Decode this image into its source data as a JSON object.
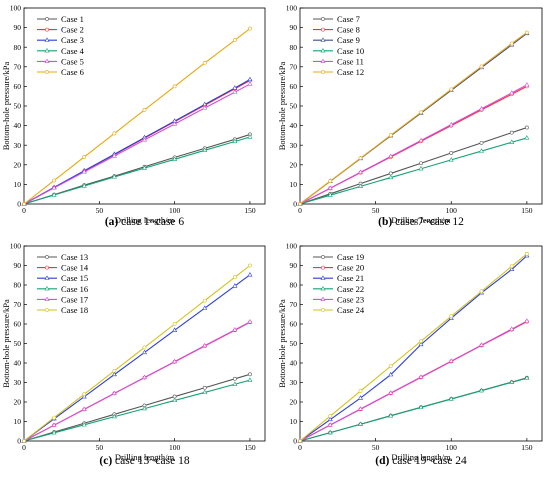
{
  "panels": [
    {
      "caption_letter": "(a)",
      "caption_text": " case 1~case 6",
      "chart_data": {
        "type": "line",
        "xlabel": "Drilling length/m",
        "ylabel": "Bottom-hole pressure/kPa",
        "xlim": [
          0,
          160
        ],
        "ylim": [
          0,
          100
        ],
        "xticks": [
          0,
          50,
          100,
          150
        ],
        "yticks": [
          0,
          10,
          20,
          30,
          40,
          50,
          60,
          70,
          80,
          90,
          100
        ],
        "grid": false,
        "legend": "top-left",
        "series": [
          {
            "name": "Case 1",
            "color": "#555555",
            "marker": "circle",
            "x": [
              0,
              20,
              40,
              60,
              80,
              100,
              120,
              140,
              150
            ],
            "y": [
              0,
              4.8,
              9.6,
              14.2,
              19.0,
              23.8,
              28.4,
              33.0,
              35.5
            ]
          },
          {
            "name": "Case 2",
            "color": "#ff3030",
            "marker": "circle",
            "x": [
              0,
              20,
              40,
              60,
              80,
              100,
              120,
              140,
              150
            ],
            "y": [
              0,
              8.4,
              16.8,
              25.2,
              33.6,
              42.0,
              50.4,
              58.8,
              63.0
            ]
          },
          {
            "name": "Case 3",
            "color": "#2a3fdc",
            "marker": "triangle",
            "x": [
              0,
              20,
              40,
              60,
              80,
              100,
              120,
              140,
              150
            ],
            "y": [
              0,
              8.5,
              17.0,
              25.4,
              33.9,
              42.3,
              50.8,
              59.2,
              63.5
            ]
          },
          {
            "name": "Case 4",
            "color": "#14a374",
            "marker": "triangle",
            "x": [
              0,
              20,
              40,
              60,
              80,
              100,
              120,
              140,
              150
            ],
            "y": [
              0,
              4.6,
              9.2,
              13.8,
              18.3,
              22.8,
              27.4,
              31.9,
              34.2
            ]
          },
          {
            "name": "Case 5",
            "color": "#d04ee0",
            "marker": "triangle",
            "x": [
              0,
              20,
              40,
              60,
              80,
              100,
              120,
              140,
              150
            ],
            "y": [
              0,
              8.2,
              16.4,
              24.5,
              32.7,
              40.8,
              49.0,
              57.1,
              61.2
            ]
          },
          {
            "name": "Case 6",
            "color": "#e8a80e",
            "marker": "circle",
            "x": [
              0,
              20,
              40,
              60,
              80,
              100,
              120,
              140,
              150
            ],
            "y": [
              0,
              12.0,
              24.0,
              36.0,
              48.0,
              60.0,
              72.0,
              83.6,
              89.5
            ]
          }
        ]
      }
    },
    {
      "caption_letter": "(b)",
      "caption_text": " case 7~case 12",
      "chart_data": {
        "type": "line",
        "xlabel": "Drilling length/m",
        "ylabel": "Bottom-hole pressure/kPa",
        "xlim": [
          0,
          160
        ],
        "ylim": [
          0,
          100
        ],
        "xticks": [
          0,
          50,
          100,
          150
        ],
        "yticks": [
          0,
          10,
          20,
          30,
          40,
          50,
          60,
          70,
          80,
          90,
          100
        ],
        "grid": false,
        "legend": "top-left",
        "series": [
          {
            "name": "Case 7",
            "color": "#555555",
            "marker": "circle",
            "x": [
              0,
              20,
              40,
              60,
              80,
              100,
              120,
              140,
              150
            ],
            "y": [
              0,
              5.2,
              10.4,
              15.6,
              20.8,
              26.0,
              31.2,
              36.4,
              39.0
            ]
          },
          {
            "name": "Case 8",
            "color": "#ff3030",
            "marker": "circle",
            "x": [
              0,
              20,
              40,
              60,
              80,
              100,
              120,
              140,
              150
            ],
            "y": [
              0,
              8.0,
              16.0,
              24.0,
              32.0,
              40.0,
              48.0,
              56.0,
              60.0
            ]
          },
          {
            "name": "Case 9",
            "color": "#3d4f8f",
            "marker": "triangle",
            "x": [
              0,
              20,
              40,
              60,
              80,
              100,
              120,
              140,
              150
            ],
            "y": [
              0,
              11.6,
              23.2,
              34.8,
              46.4,
              58.0,
              69.6,
              81.2,
              87.0
            ]
          },
          {
            "name": "Case 10",
            "color": "#14a374",
            "marker": "triangle",
            "x": [
              0,
              20,
              40,
              60,
              80,
              100,
              120,
              140,
              150
            ],
            "y": [
              0,
              4.5,
              9.0,
              13.5,
              18.0,
              22.5,
              27.0,
              31.5,
              33.7
            ]
          },
          {
            "name": "Case 11",
            "color": "#d04ee0",
            "marker": "triangle",
            "x": [
              0,
              20,
              40,
              60,
              80,
              100,
              120,
              140,
              150
            ],
            "y": [
              0,
              8.1,
              16.2,
              24.3,
              32.4,
              40.5,
              48.6,
              56.7,
              60.8
            ]
          },
          {
            "name": "Case 12",
            "color": "#e8a80e",
            "marker": "circle",
            "x": [
              0,
              20,
              40,
              60,
              80,
              100,
              120,
              140,
              150
            ],
            "y": [
              0,
              11.7,
              23.4,
              35.1,
              46.8,
              58.5,
              70.2,
              81.9,
              87.5
            ]
          }
        ]
      }
    },
    {
      "caption_letter": "(c)",
      "caption_text": " case 13~case 18",
      "chart_data": {
        "type": "line",
        "xlabel": "Drilling length/m",
        "ylabel": "Bottom-hole pressure/kPa",
        "xlim": [
          0,
          160
        ],
        "ylim": [
          0,
          100
        ],
        "xticks": [
          0,
          50,
          100,
          150
        ],
        "yticks": [
          0,
          10,
          20,
          30,
          40,
          50,
          60,
          70,
          80,
          90,
          100
        ],
        "grid": false,
        "legend": "top-left",
        "series": [
          {
            "name": "Case 13",
            "color": "#555555",
            "marker": "circle",
            "x": [
              0,
              20,
              40,
              60,
              80,
              100,
              120,
              140,
              150
            ],
            "y": [
              0,
              4.6,
              9.1,
              13.7,
              18.2,
              22.8,
              27.3,
              31.9,
              34.2
            ]
          },
          {
            "name": "Case 14",
            "color": "#ff3030",
            "marker": "circle",
            "x": [
              0,
              20,
              40,
              60,
              80,
              100,
              120,
              140,
              150
            ],
            "y": [
              0,
              8.1,
              16.2,
              24.4,
              32.5,
              40.6,
              48.7,
              56.8,
              60.9
            ]
          },
          {
            "name": "Case 15",
            "color": "#2a3fdc",
            "marker": "triangle",
            "x": [
              0,
              20,
              40,
              60,
              80,
              100,
              120,
              140,
              150
            ],
            "y": [
              0,
              11.4,
              22.7,
              34.1,
              45.4,
              56.8,
              68.1,
              79.5,
              85.2
            ]
          },
          {
            "name": "Case 16",
            "color": "#14a374",
            "marker": "triangle",
            "x": [
              0,
              20,
              40,
              60,
              80,
              100,
              120,
              140,
              150
            ],
            "y": [
              0,
              4.2,
              8.3,
              12.5,
              16.6,
              20.8,
              24.9,
              29.1,
              31.2
            ]
          },
          {
            "name": "Case 17",
            "color": "#d04ee0",
            "marker": "triangle",
            "x": [
              0,
              20,
              40,
              60,
              80,
              100,
              120,
              140,
              150
            ],
            "y": [
              0,
              8.1,
              16.3,
              24.4,
              32.6,
              40.7,
              48.9,
              57.0,
              61.1
            ]
          },
          {
            "name": "Case 18",
            "color": "#d4c21a",
            "marker": "circle",
            "x": [
              0,
              20,
              40,
              60,
              80,
              100,
              120,
              140,
              150
            ],
            "y": [
              0,
              12.0,
              24.0,
              36.0,
              48.0,
              60.0,
              72.0,
              84.0,
              90.0
            ]
          }
        ]
      }
    },
    {
      "caption_letter": "(d)",
      "caption_text": " case 19~case 24",
      "chart_data": {
        "type": "line",
        "xlabel": "Drilling length/m",
        "ylabel": "Bottom-hole pressure/kPa",
        "xlim": [
          0,
          160
        ],
        "ylim": [
          0,
          100
        ],
        "xticks": [
          0,
          50,
          100,
          150
        ],
        "yticks": [
          0,
          10,
          20,
          30,
          40,
          50,
          60,
          70,
          80,
          90,
          100
        ],
        "grid": false,
        "legend": "top-left",
        "series": [
          {
            "name": "Case 19",
            "color": "#555555",
            "marker": "circle",
            "x": [
              0,
              20,
              40,
              60,
              80,
              100,
              120,
              140,
              150
            ],
            "y": [
              0,
              4.3,
              8.6,
              13.0,
              17.3,
              21.6,
              25.9,
              30.2,
              32.4
            ]
          },
          {
            "name": "Case 20",
            "color": "#ff3030",
            "marker": "circle",
            "x": [
              0,
              20,
              40,
              60,
              80,
              100,
              120,
              140,
              150
            ],
            "y": [
              0,
              8.2,
              16.3,
              24.5,
              32.6,
              40.8,
              49.0,
              57.1,
              61.2
            ]
          },
          {
            "name": "Case 21",
            "color": "#2a3fdc",
            "marker": "triangle",
            "x": [
              0,
              20,
              40,
              60,
              80,
              100,
              120,
              140,
              150
            ],
            "y": [
              0,
              11.0,
              22.0,
              34.0,
              49.5,
              63.0,
              76.0,
              88.0,
              95.0
            ]
          },
          {
            "name": "Case 22",
            "color": "#14a374",
            "marker": "triangle",
            "x": [
              0,
              20,
              40,
              60,
              80,
              100,
              120,
              140,
              150
            ],
            "y": [
              0,
              4.3,
              8.6,
              12.9,
              17.2,
              21.5,
              25.8,
              30.1,
              32.2
            ]
          },
          {
            "name": "Case 23",
            "color": "#d04ee0",
            "marker": "triangle",
            "x": [
              0,
              20,
              40,
              60,
              80,
              100,
              120,
              140,
              150
            ],
            "y": [
              0,
              8.2,
              16.4,
              24.6,
              32.8,
              41.0,
              49.2,
              57.4,
              61.5
            ]
          },
          {
            "name": "Case 24",
            "color": "#d4c21a",
            "marker": "circle",
            "x": [
              0,
              20,
              40,
              60,
              80,
              100,
              120,
              140,
              150
            ],
            "y": [
              0,
              12.8,
              25.6,
              38.4,
              51.2,
              64.0,
              76.8,
              89.6,
              96.0
            ]
          }
        ]
      }
    }
  ]
}
